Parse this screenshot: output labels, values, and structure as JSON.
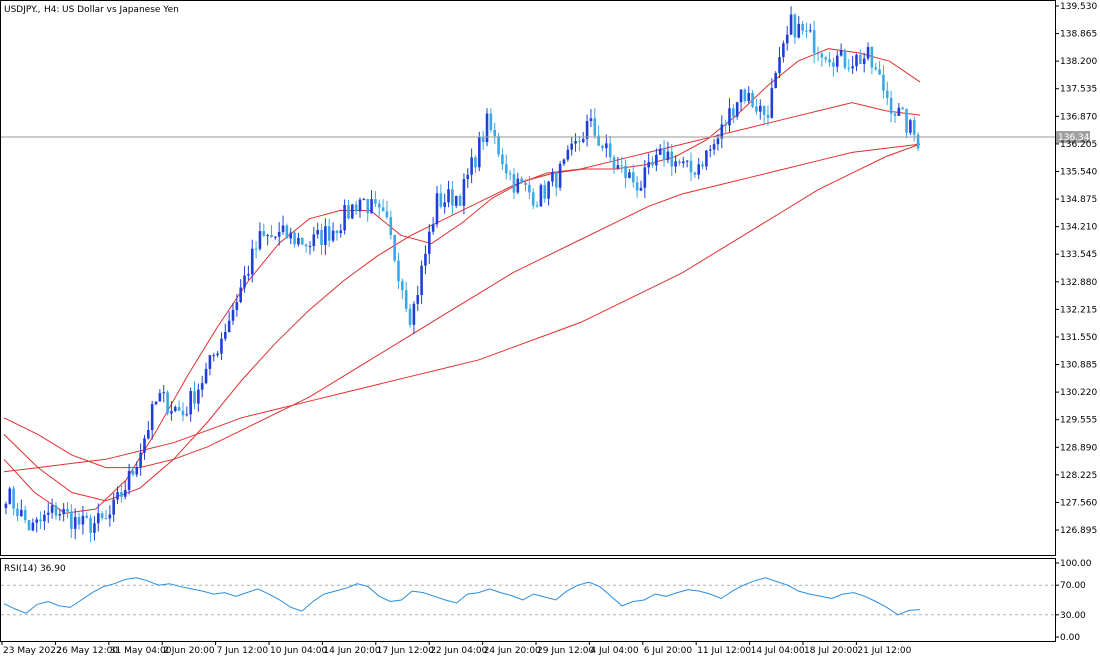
{
  "header": {
    "symbol": "USDJPY.,",
    "timeframe": "H4:",
    "description": "US Dollar vs Japanese Yen"
  },
  "price_axis": {
    "labels": [
      "139.530",
      "138.865",
      "138.200",
      "137.535",
      "136.870",
      "136.205",
      "135.540",
      "134.875",
      "134.210",
      "133.545",
      "132.880",
      "132.215",
      "131.550",
      "130.885",
      "130.220",
      "129.555",
      "128.890",
      "128.225",
      "127.560",
      "126.895"
    ]
  },
  "current_price": {
    "label": "136.342",
    "value": 136.342
  },
  "rsi": {
    "title": "RSI(14) 36.90",
    "axis_labels": [
      "100.00",
      "70.00",
      "30.00",
      "0.00"
    ],
    "levels": [
      70,
      30
    ]
  },
  "time_axis": {
    "labels": [
      "23 May 2022",
      "26 May 12:00",
      "31 May 04:00",
      "2 Jun 20:00",
      "7 Jun 12:00",
      "10 Jun 04:00",
      "14 Jun 20:00",
      "17 Jun 12:00",
      "22 Jun 04:00",
      "24 Jun 20:00",
      "29 Jun 12:00",
      "4 Jul 04:00",
      "6 Jul 20:00",
      "11 Jul 12:00",
      "14 Jul 04:00",
      "18 Jul 20:00",
      "21 Jul 12:00"
    ]
  },
  "colors": {
    "bull_candle": "#1f3fd8",
    "bear_candle": "#3aa8e6",
    "moving_average": "#e03030",
    "rsi_line": "#2a8ee0",
    "level_line": "#b0b0b0",
    "frame": "#000000"
  },
  "chart_data": {
    "type": "candlestick",
    "title": "USDJPY., H4: US Dollar vs Japanese Yen",
    "ylim": [
      126.6,
      139.65
    ],
    "anchor_closes": [
      127.8,
      126.9,
      127.4,
      127.0,
      127.1,
      128.3,
      130.1,
      129.7,
      130.8,
      132.3,
      133.9,
      134.0,
      133.8,
      134.2,
      134.9,
      134.3,
      132.0,
      134.8,
      135.0,
      136.7,
      135.3,
      134.9,
      135.6,
      136.7,
      135.7,
      135.2,
      136.0,
      135.5,
      136.2,
      137.5,
      136.9,
      139.1,
      138.6,
      138.2,
      138.3,
      137.1,
      136.3
    ],
    "moving_averages": [
      {
        "values": [
          128.6,
          127.8,
          127.3,
          127.4,
          128.1,
          129.3,
          130.6,
          131.8,
          132.9,
          133.8,
          134.4,
          134.6,
          134.6,
          134.0,
          133.8,
          134.3,
          134.9,
          135.3,
          135.5,
          135.6,
          135.6,
          135.7,
          135.9,
          136.3,
          136.9,
          137.6,
          138.2,
          138.5,
          138.4,
          138.2,
          137.7
        ]
      },
      {
        "values": [
          129.2,
          128.4,
          127.8,
          127.6,
          127.9,
          128.6,
          129.5,
          130.5,
          131.4,
          132.2,
          132.9,
          133.5,
          134.0,
          134.4,
          134.8,
          135.2,
          135.5,
          135.6,
          135.8,
          136.0,
          136.2,
          136.4,
          136.6,
          136.8,
          137.0,
          137.2,
          137.0,
          136.9
        ]
      },
      {
        "values": [
          129.6,
          129.2,
          128.7,
          128.4,
          128.4,
          128.6,
          128.9,
          129.3,
          129.7,
          130.1,
          130.6,
          131.1,
          131.6,
          132.1,
          132.6,
          133.1,
          133.5,
          133.9,
          134.3,
          134.7,
          135.0,
          135.2,
          135.4,
          135.6,
          135.8,
          136.0,
          136.1,
          136.2
        ]
      },
      {
        "values": [
          128.3,
          128.4,
          128.5,
          128.6,
          128.8,
          129.0,
          129.3,
          129.6,
          129.8,
          130.0,
          130.2,
          130.4,
          130.6,
          130.8,
          131.0,
          131.3,
          131.6,
          131.9,
          132.3,
          132.7,
          133.1,
          133.6,
          134.1,
          134.6,
          135.1,
          135.5,
          135.9,
          136.2
        ]
      }
    ],
    "rsi_series": [
      45,
      38,
      32,
      44,
      48,
      42,
      40,
      50,
      60,
      68,
      72,
      78,
      80,
      76,
      70,
      72,
      68,
      65,
      62,
      58,
      60,
      55,
      60,
      65,
      58,
      50,
      40,
      35,
      48,
      58,
      62,
      66,
      72,
      68,
      55,
      48,
      50,
      62,
      60,
      55,
      50,
      46,
      58,
      60,
      65,
      60,
      56,
      50,
      58,
      54,
      50,
      62,
      70,
      74,
      68,
      55,
      42,
      48,
      50,
      58,
      55,
      60,
      64,
      62,
      58,
      52,
      62,
      70,
      76,
      80,
      75,
      70,
      62,
      58,
      55,
      52,
      58,
      60,
      55,
      48,
      40,
      30,
      36,
      37
    ]
  }
}
